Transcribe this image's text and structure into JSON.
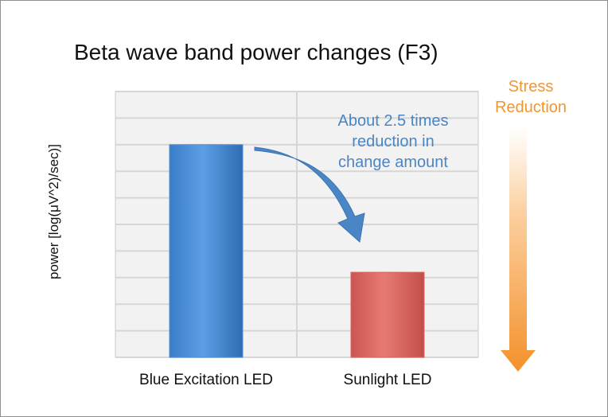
{
  "chart_data": {
    "type": "bar",
    "title": "Beta wave band power changes (F3)",
    "xlabel": "",
    "ylabel": "power [log(μV^2)/sec)]",
    "categories": [
      "Blue Excitation LED",
      "Sunlight LED"
    ],
    "values": [
      8.0,
      3.2
    ],
    "ylim": [
      0,
      10
    ],
    "grid": true,
    "bar_colors": [
      "#4a8fd8",
      "#d9645f"
    ],
    "annotations": {
      "reduction_text": [
        "About 2.5 times",
        "reduction in",
        "change amount"
      ],
      "stress_text": [
        "Stress",
        "Reduction"
      ]
    }
  },
  "colors": {
    "annotation": "#4a86c5",
    "stress": "#f0962f",
    "plot_background": "#f2f2f2",
    "grid": "#d6d6d6"
  },
  "icons": {
    "curved_arrow": "curved-down-arrow-icon",
    "stress_arrow": "down-arrow-icon"
  }
}
